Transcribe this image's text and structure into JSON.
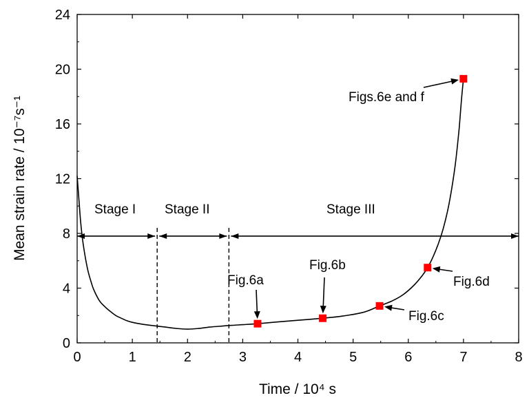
{
  "chart_data": {
    "type": "line",
    "xlabel": "Time / 10⁴ s",
    "ylabel": "Mean strain rate / 10⁻⁷s⁻¹",
    "xlim": [
      0,
      8
    ],
    "ylim": [
      0,
      24
    ],
    "x_ticks": [
      0,
      1,
      2,
      3,
      4,
      5,
      6,
      7,
      8
    ],
    "y_ticks": [
      0,
      4,
      8,
      12,
      16,
      20,
      24
    ],
    "grid": false,
    "legend": "none",
    "curve_color": "#000000",
    "marker_color": "#ff0000",
    "series": [
      {
        "x": [
          0.0,
          0.03,
          0.06,
          0.1,
          0.15,
          0.2,
          0.25,
          0.3,
          0.4,
          0.5,
          0.6,
          0.7,
          0.8,
          0.9,
          1.0,
          1.2,
          1.4,
          1.6,
          1.8,
          2.0,
          2.2,
          2.4,
          2.6,
          2.8,
          3.0,
          3.27,
          3.6,
          4.0,
          4.45,
          4.8,
          5.2,
          5.48,
          5.7,
          5.9,
          6.1,
          6.25,
          6.35,
          6.45,
          6.55,
          6.65,
          6.75,
          6.85,
          6.92,
          6.96,
          7.0
        ],
        "y": [
          12.2,
          10.6,
          9.0,
          7.5,
          6.2,
          5.2,
          4.5,
          3.9,
          3.1,
          2.65,
          2.3,
          2.0,
          1.8,
          1.62,
          1.5,
          1.35,
          1.25,
          1.15,
          1.05,
          1.0,
          1.05,
          1.15,
          1.22,
          1.28,
          1.33,
          1.4,
          1.52,
          1.65,
          1.8,
          1.95,
          2.25,
          2.7,
          3.05,
          3.5,
          4.2,
          4.9,
          5.5,
          6.3,
          7.3,
          8.6,
          10.4,
          13.0,
          15.6,
          17.6,
          19.3
        ]
      }
    ],
    "points": [
      {
        "x": 3.27,
        "y": 1.4
      },
      {
        "x": 4.45,
        "y": 1.8
      },
      {
        "x": 5.48,
        "y": 2.7
      },
      {
        "x": 6.35,
        "y": 5.5
      },
      {
        "x": 7.0,
        "y": 19.3
      }
    ],
    "annotations": [
      "Fig.6a",
      "Fig.6b",
      "Fig.6c",
      "Fig.6d",
      "Figs.6e and f"
    ],
    "stages": {
      "y": 7.8,
      "boundaries": [
        1.45,
        2.75
      ],
      "end": 8,
      "labels": [
        "Stage I",
        "Stage II",
        "Stage III"
      ]
    }
  }
}
